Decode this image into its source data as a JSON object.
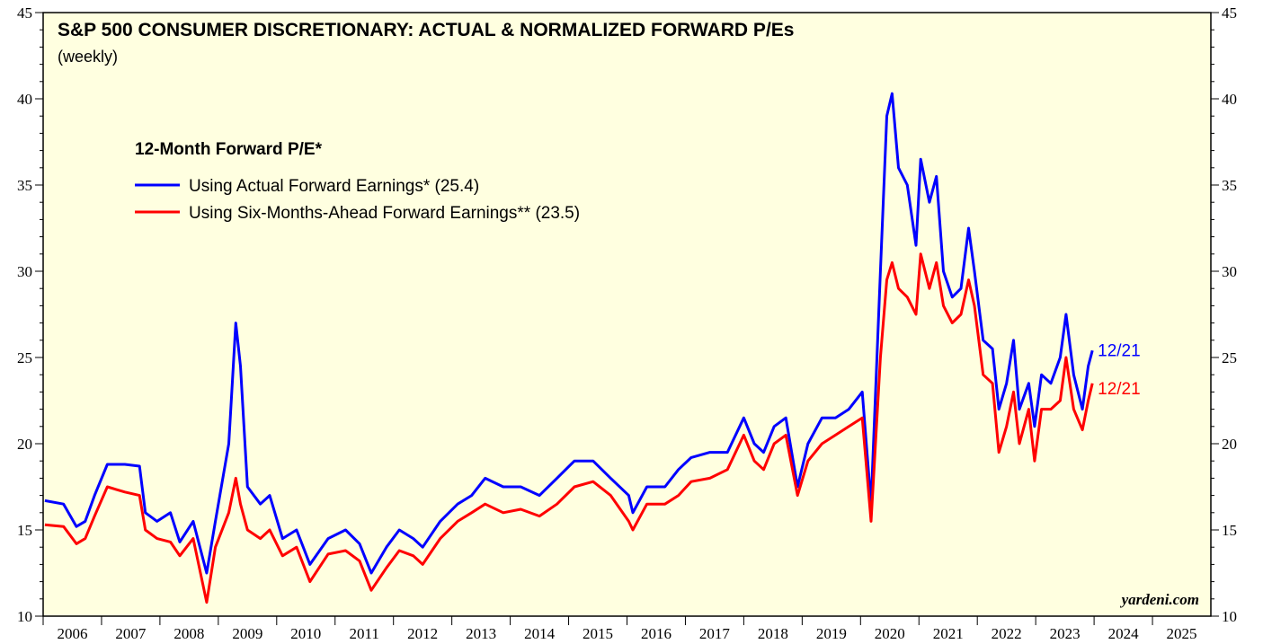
{
  "chart_data": {
    "type": "line",
    "title": "S&P 500 CONSUMER DISCRETIONARY: ACTUAL & NORMALIZED FORWARD P/Es",
    "subtitle": "(weekly)",
    "legend_title": "12-Month Forward P/E*",
    "source": "yardeni.com",
    "x": [
      2006.03,
      2006.35,
      2006.57,
      2006.72,
      2006.88,
      2007.1,
      2007.4,
      2007.65,
      2007.75,
      2007.95,
      2008.18,
      2008.34,
      2008.57,
      2008.8,
      2008.95,
      2009.18,
      2009.3,
      2009.38,
      2009.5,
      2009.72,
      2009.88,
      2010.1,
      2010.34,
      2010.57,
      2010.88,
      2011.18,
      2011.42,
      2011.62,
      2011.88,
      2012.1,
      2012.34,
      2012.5,
      2012.8,
      2013.1,
      2013.34,
      2013.57,
      2013.88,
      2014.18,
      2014.5,
      2014.8,
      2015.1,
      2015.42,
      2015.72,
      2016.03,
      2016.1,
      2016.34,
      2016.65,
      2016.88,
      2017.1,
      2017.42,
      2017.72,
      2018.0,
      2018.18,
      2018.34,
      2018.52,
      2018.72,
      2018.92,
      2019.1,
      2019.34,
      2019.57,
      2019.8,
      2020.03,
      2020.18,
      2020.34,
      2020.45,
      2020.54,
      2020.65,
      2020.8,
      2020.95,
      2021.03,
      2021.18,
      2021.3,
      2021.42,
      2021.57,
      2021.72,
      2021.85,
      2021.95,
      2022.1,
      2022.26,
      2022.37,
      2022.5,
      2022.62,
      2022.72,
      2022.88,
      2022.98,
      2023.1,
      2023.26,
      2023.42,
      2023.52,
      2023.65,
      2023.8,
      2023.9,
      2023.97
    ],
    "series": [
      {
        "name": "Using Actual Forward Earnings* (25.4)",
        "color": "#0000ff",
        "end_label": "12/21",
        "values": [
          16.7,
          16.5,
          15.2,
          15.5,
          17,
          18.8,
          18.8,
          18.7,
          16,
          15.5,
          16,
          14.3,
          15.5,
          12.5,
          15.5,
          20,
          27,
          24.5,
          17.5,
          16.5,
          17,
          14.5,
          15,
          13,
          14.5,
          15,
          14.2,
          12.5,
          14,
          15,
          14.5,
          14,
          15.5,
          16.5,
          17,
          18,
          17.5,
          17.5,
          17,
          18,
          19,
          19,
          18,
          17,
          16,
          17.5,
          17.5,
          18.5,
          19.2,
          19.5,
          19.5,
          21.5,
          20,
          19.5,
          21,
          21.5,
          17.5,
          20,
          21.5,
          21.5,
          22,
          23,
          16.5,
          30,
          39,
          40.3,
          36,
          35,
          31.5,
          36.5,
          34,
          35.5,
          30,
          28.5,
          29,
          32.5,
          30,
          26,
          25.5,
          22,
          23.5,
          26,
          22,
          23.5,
          21,
          24,
          23.5,
          25,
          27.5,
          24,
          22,
          24.5,
          25.4
        ]
      },
      {
        "name": "Using Six-Months-Ahead Forward Earnings** (23.5)",
        "color": "#ff0000",
        "end_label": "12/21",
        "values": [
          15.3,
          15.2,
          14.2,
          14.5,
          15.8,
          17.5,
          17.2,
          17,
          15,
          14.5,
          14.3,
          13.5,
          14.5,
          10.8,
          14,
          16,
          18,
          16.5,
          15,
          14.5,
          15,
          13.5,
          14,
          12,
          13.6,
          13.8,
          13.2,
          11.5,
          12.8,
          13.8,
          13.5,
          13,
          14.5,
          15.5,
          16,
          16.5,
          16,
          16.2,
          15.8,
          16.5,
          17.5,
          17.8,
          17,
          15.5,
          15,
          16.5,
          16.5,
          17,
          17.8,
          18,
          18.5,
          20.5,
          19,
          18.5,
          20,
          20.5,
          17,
          19,
          20,
          20.5,
          21,
          21.5,
          15.5,
          25,
          29.5,
          30.5,
          29,
          28.5,
          27.5,
          31,
          29,
          30.5,
          28,
          27,
          27.5,
          29.5,
          28,
          24,
          23.5,
          19.5,
          21,
          23,
          20,
          22,
          19,
          22,
          22,
          22.5,
          25,
          22,
          20.8,
          22.5,
          23.5
        ]
      }
    ],
    "xlim": [
      2006,
      2026
    ],
    "xticks": [
      {
        "value": 2006.5,
        "label": "2006"
      },
      {
        "value": 2007.5,
        "label": "2007"
      },
      {
        "value": 2008.5,
        "label": "2008"
      },
      {
        "value": 2009.5,
        "label": "2009"
      },
      {
        "value": 2010.5,
        "label": "2010"
      },
      {
        "value": 2011.5,
        "label": "2011"
      },
      {
        "value": 2012.5,
        "label": "2012"
      },
      {
        "value": 2013.5,
        "label": "2013"
      },
      {
        "value": 2014.5,
        "label": "2014"
      },
      {
        "value": 2015.5,
        "label": "2015"
      },
      {
        "value": 2016.5,
        "label": "2016"
      },
      {
        "value": 2017.5,
        "label": "2017"
      },
      {
        "value": 2018.5,
        "label": "2018"
      },
      {
        "value": 2019.5,
        "label": "2019"
      },
      {
        "value": 2020.5,
        "label": "2020"
      },
      {
        "value": 2021.5,
        "label": "2021"
      },
      {
        "value": 2022.5,
        "label": "2022"
      },
      {
        "value": 2023.5,
        "label": "2023"
      },
      {
        "value": 2024.5,
        "label": "2024"
      },
      {
        "value": 2025.5,
        "label": "2025"
      }
    ],
    "ylim": [
      10,
      45
    ],
    "yticks": [
      10,
      15,
      20,
      25,
      30,
      35,
      40,
      45
    ]
  }
}
